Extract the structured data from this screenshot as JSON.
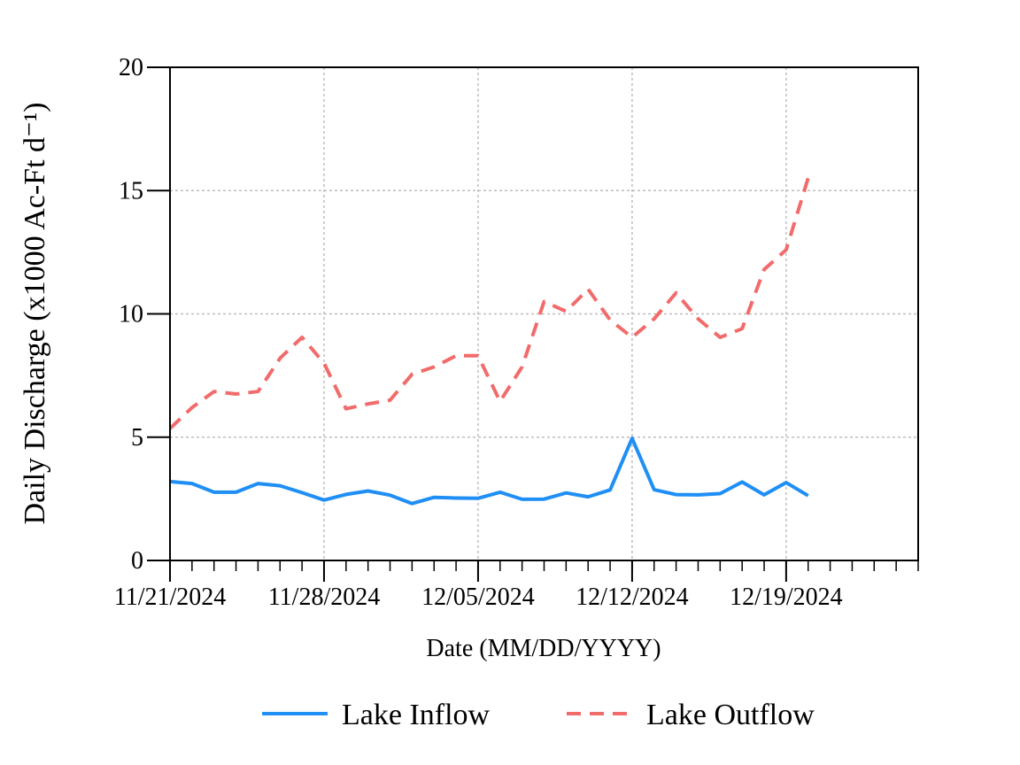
{
  "chart_data": {
    "type": "line",
    "title": "",
    "xlabel": "Date (MM/DD/YYYY)",
    "ylabel": "Daily Discharge (x1000 Ac-Ft d⁻¹)",
    "ylim": [
      0,
      20
    ],
    "yticks": [
      0,
      5,
      10,
      15,
      20
    ],
    "xlim": [
      "11/21/2024",
      "12/25/2024"
    ],
    "xticks": [
      "11/21/2024",
      "11/28/2024",
      "12/05/2024",
      "12/12/2024",
      "12/19/2024"
    ],
    "minor_xticks": "daily",
    "grid": true,
    "legend_position": "bottom",
    "x": [
      "11/21/2024",
      "11/22/2024",
      "11/23/2024",
      "11/24/2024",
      "11/25/2024",
      "11/26/2024",
      "11/27/2024",
      "11/28/2024",
      "11/29/2024",
      "11/30/2024",
      "12/01/2024",
      "12/02/2024",
      "12/03/2024",
      "12/04/2024",
      "12/05/2024",
      "12/06/2024",
      "12/07/2024",
      "12/08/2024",
      "12/09/2024",
      "12/10/2024",
      "12/11/2024",
      "12/12/2024",
      "12/13/2024",
      "12/14/2024",
      "12/15/2024",
      "12/16/2024",
      "12/17/2024",
      "12/18/2024",
      "12/19/2024",
      "12/20/2024"
    ],
    "series": [
      {
        "name": "Lake Inflow",
        "color": "#1f8ff5",
        "style": "solid",
        "values": [
          3.2,
          3.12,
          2.77,
          2.77,
          3.12,
          3.03,
          2.75,
          2.45,
          2.68,
          2.82,
          2.65,
          2.31,
          2.56,
          2.53,
          2.52,
          2.77,
          2.48,
          2.49,
          2.74,
          2.58,
          2.86,
          4.95,
          2.87,
          2.67,
          2.66,
          2.71,
          3.18,
          2.66,
          3.16,
          2.63
        ]
      },
      {
        "name": "Lake Outflow",
        "color": "#f26b6b",
        "style": "dashed",
        "values": [
          5.35,
          6.2,
          6.85,
          6.75,
          6.85,
          8.2,
          9.05,
          8.0,
          6.15,
          6.35,
          6.5,
          7.55,
          7.85,
          8.3,
          8.3,
          6.45,
          7.85,
          10.5,
          10.1,
          11.0,
          9.75,
          9.05,
          9.8,
          10.85,
          9.8,
          9.05,
          9.4,
          11.8,
          12.6,
          15.5
        ]
      }
    ]
  }
}
